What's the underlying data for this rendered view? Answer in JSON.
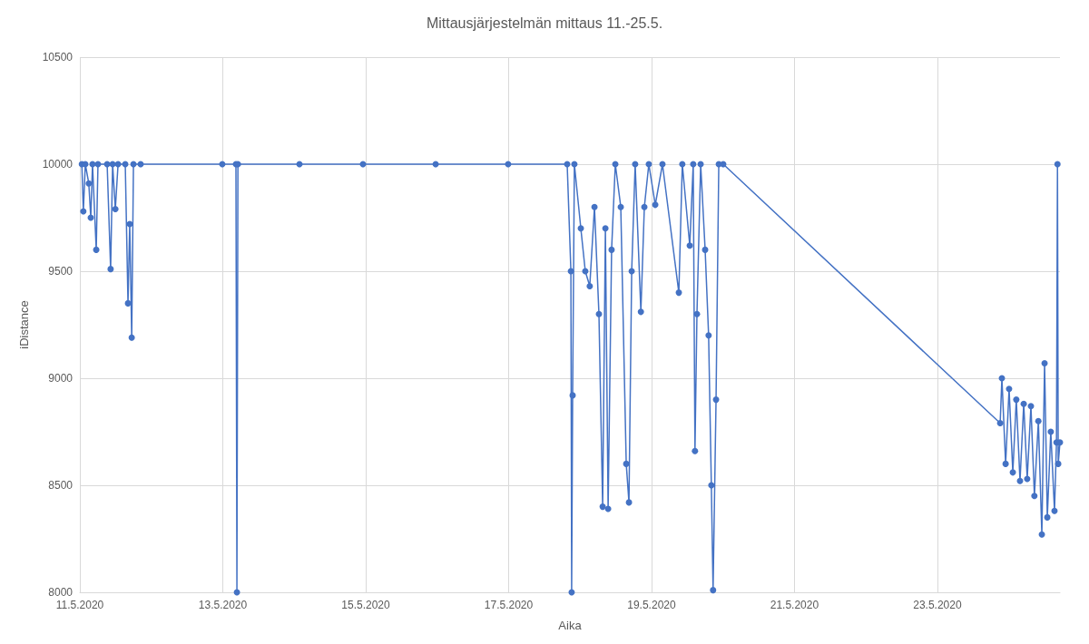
{
  "chart_data": {
    "type": "line",
    "title": "Mittausjärjestelmän mittaus 11.-25.5.",
    "xlabel": "Aika",
    "ylabel": "iDistance",
    "marker": "circle",
    "line_style": "solid",
    "grid": true,
    "xlim": [
      "2020-05-11",
      "2020-05-24T17:10"
    ],
    "xticks": [
      {
        "value": "2020-05-11",
        "label": "11.5.2020"
      },
      {
        "value": "2020-05-13",
        "label": "13.5.2020"
      },
      {
        "value": "2020-05-15",
        "label": "15.5.2020"
      },
      {
        "value": "2020-05-17",
        "label": "17.5.2020"
      },
      {
        "value": "2020-05-19",
        "label": "19.5.2020"
      },
      {
        "value": "2020-05-21",
        "label": "21.5.2020"
      },
      {
        "value": "2020-05-23",
        "label": "23.5.2020"
      }
    ],
    "ylim": [
      8000,
      10500
    ],
    "yticks": [
      8000,
      8500,
      9000,
      9500,
      10000,
      10500
    ],
    "series": [
      {
        "color": "#4472c4",
        "x": [
          "2020-05-11T00:40",
          "2020-05-11T01:10",
          "2020-05-11T01:50",
          "2020-05-11T03:00",
          "2020-05-11T03:40",
          "2020-05-11T04:15",
          "2020-05-11T05:30",
          "2020-05-11T06:05",
          "2020-05-11T09:10",
          "2020-05-11T10:20",
          "2020-05-11T11:00",
          "2020-05-11T11:55",
          "2020-05-11T12:50",
          "2020-05-11T15:15",
          "2020-05-11T16:10",
          "2020-05-11T16:45",
          "2020-05-11T17:25",
          "2020-05-11T18:00",
          "2020-05-11T20:25",
          "2020-05-12T23:50",
          "2020-05-13T04:25",
          "2020-05-13T04:45",
          "2020-05-13T05:05",
          "2020-05-14T01:45",
          "2020-05-14T23:05",
          "2020-05-15T23:30",
          "2020-05-16T23:50",
          "2020-05-17T19:40",
          "2020-05-17T20:55",
          "2020-05-17T21:10",
          "2020-05-17T21:30",
          "2020-05-17T22:05",
          "2020-05-18T00:15",
          "2020-05-18T01:45",
          "2020-05-18T03:15",
          "2020-05-18T04:50",
          "2020-05-18T06:20",
          "2020-05-18T07:35",
          "2020-05-18T08:30",
          "2020-05-18T09:25",
          "2020-05-18T10:35",
          "2020-05-18T11:50",
          "2020-05-18T13:40",
          "2020-05-18T15:30",
          "2020-05-18T16:25",
          "2020-05-18T17:20",
          "2020-05-18T18:30",
          "2020-05-18T20:25",
          "2020-05-18T21:35",
          "2020-05-18T23:05",
          "2020-05-19T01:15",
          "2020-05-19T03:40",
          "2020-05-19T09:10",
          "2020-05-19T10:20",
          "2020-05-19T12:50",
          "2020-05-19T14:00",
          "2020-05-19T14:35",
          "2020-05-19T15:15",
          "2020-05-19T16:30",
          "2020-05-19T18:00",
          "2020-05-19T19:10",
          "2020-05-19T20:05",
          "2020-05-19T20:40",
          "2020-05-19T21:40",
          "2020-05-19T22:35",
          "2020-05-20T00:05",
          "2020-05-23T21:05",
          "2020-05-23T21:40",
          "2020-05-23T22:55",
          "2020-05-24T00:05",
          "2020-05-24T01:20",
          "2020-05-24T02:30",
          "2020-05-24T03:45",
          "2020-05-24T05:00",
          "2020-05-24T06:10",
          "2020-05-24T07:25",
          "2020-05-24T08:35",
          "2020-05-24T09:55",
          "2020-05-24T11:05",
          "2020-05-24T12:00",
          "2020-05-24T12:55",
          "2020-05-24T14:05",
          "2020-05-24T15:20",
          "2020-05-24T16:00",
          "2020-05-24T16:20",
          "2020-05-24T16:35",
          "2020-05-24T17:10"
        ],
        "values": [
          10000,
          9780,
          10000,
          9910,
          9750,
          10000,
          9600,
          10000,
          10000,
          9510,
          10000,
          9790,
          10000,
          10000,
          9350,
          9720,
          9190,
          10000,
          10000,
          10000,
          10000,
          8000,
          10000,
          10000,
          10000,
          10000,
          10000,
          10000,
          9500,
          8000,
          8920,
          10000,
          9700,
          9500,
          9430,
          9800,
          9300,
          8400,
          9700,
          8390,
          9600,
          10000,
          9800,
          8600,
          8420,
          9500,
          10000,
          9310,
          9800,
          10000,
          9810,
          10000,
          9400,
          10000,
          9620,
          10000,
          8660,
          9300,
          10000,
          9600,
          9200,
          8500,
          8010,
          8900,
          10000,
          10000,
          8790,
          9000,
          8600,
          8950,
          8560,
          8900,
          8520,
          8880,
          8530,
          8870,
          8450,
          8800,
          8270,
          9070,
          8350,
          8750,
          8380,
          8700,
          10000,
          8600,
          8700
        ]
      }
    ]
  }
}
